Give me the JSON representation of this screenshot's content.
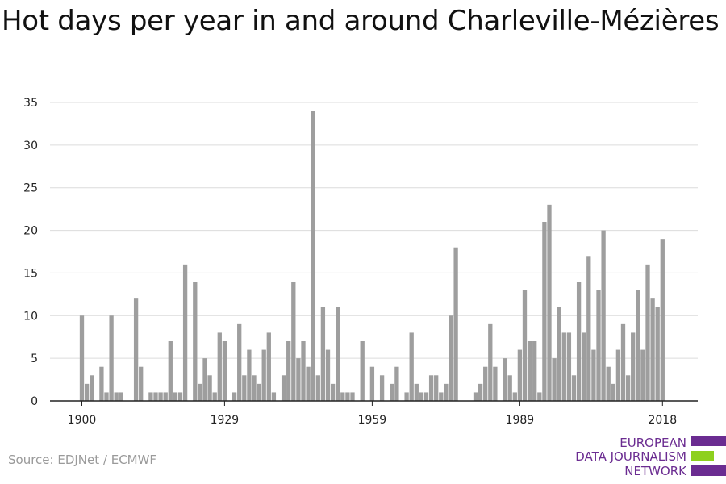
{
  "title": "Hot days per year in and around Charleville-Mézières",
  "source": "Source: EDJNet / ECMWF",
  "logo": {
    "line1": "EUROPEAN",
    "line2": "DATA JOURNALISM",
    "line3": "NETWORK",
    "colors": {
      "purple": "#6b2c91",
      "green": "#8ed01e"
    }
  },
  "chart_data": {
    "type": "bar",
    "title": "Hot days per year in and around Charleville-Mézières",
    "xlabel": "",
    "ylabel": "",
    "bar_color": "#9e9e9e",
    "grid": true,
    "ylim": [
      0,
      35
    ],
    "yticks": [
      0,
      5,
      10,
      15,
      20,
      25,
      30,
      35
    ],
    "xticks": [
      1900,
      1929,
      1959,
      1989,
      2018
    ],
    "x": [
      1900,
      1901,
      1902,
      1903,
      1904,
      1905,
      1906,
      1907,
      1908,
      1909,
      1910,
      1911,
      1912,
      1913,
      1914,
      1915,
      1916,
      1917,
      1918,
      1919,
      1920,
      1921,
      1922,
      1923,
      1924,
      1925,
      1926,
      1927,
      1928,
      1929,
      1930,
      1931,
      1932,
      1933,
      1934,
      1935,
      1936,
      1937,
      1938,
      1939,
      1940,
      1941,
      1942,
      1943,
      1944,
      1945,
      1946,
      1947,
      1948,
      1949,
      1950,
      1951,
      1952,
      1953,
      1954,
      1955,
      1956,
      1957,
      1958,
      1959,
      1960,
      1961,
      1962,
      1963,
      1964,
      1965,
      1966,
      1967,
      1968,
      1969,
      1970,
      1971,
      1972,
      1973,
      1974,
      1975,
      1976,
      1977,
      1978,
      1979,
      1980,
      1981,
      1982,
      1983,
      1984,
      1985,
      1986,
      1987,
      1988,
      1989,
      1990,
      1991,
      1992,
      1993,
      1994,
      1995,
      1996,
      1997,
      1998,
      1999,
      2000,
      2001,
      2002,
      2003,
      2004,
      2005,
      2006,
      2007,
      2008,
      2009,
      2010,
      2011,
      2012,
      2013,
      2014,
      2015,
      2016,
      2017,
      2018
    ],
    "values": [
      10,
      2,
      3,
      0,
      4,
      1,
      10,
      1,
      1,
      0,
      0,
      12,
      4,
      0,
      1,
      1,
      1,
      1,
      7,
      1,
      1,
      16,
      0,
      14,
      2,
      5,
      3,
      1,
      8,
      7,
      0,
      1,
      9,
      3,
      6,
      3,
      2,
      6,
      8,
      1,
      0,
      3,
      7,
      14,
      5,
      7,
      4,
      34,
      3,
      11,
      6,
      2,
      11,
      1,
      1,
      1,
      0,
      7,
      0,
      4,
      0,
      3,
      0,
      2,
      4,
      0,
      1,
      8,
      2,
      1,
      1,
      3,
      3,
      1,
      2,
      10,
      18,
      0,
      0,
      0,
      1,
      2,
      4,
      9,
      4,
      0,
      5,
      3,
      1,
      6,
      13,
      7,
      7,
      1,
      21,
      23,
      5,
      11,
      8,
      8,
      3,
      14,
      8,
      17,
      6,
      13,
      20,
      4,
      2,
      6,
      9,
      3,
      8,
      13,
      6,
      16,
      12,
      11,
      19
    ]
  }
}
